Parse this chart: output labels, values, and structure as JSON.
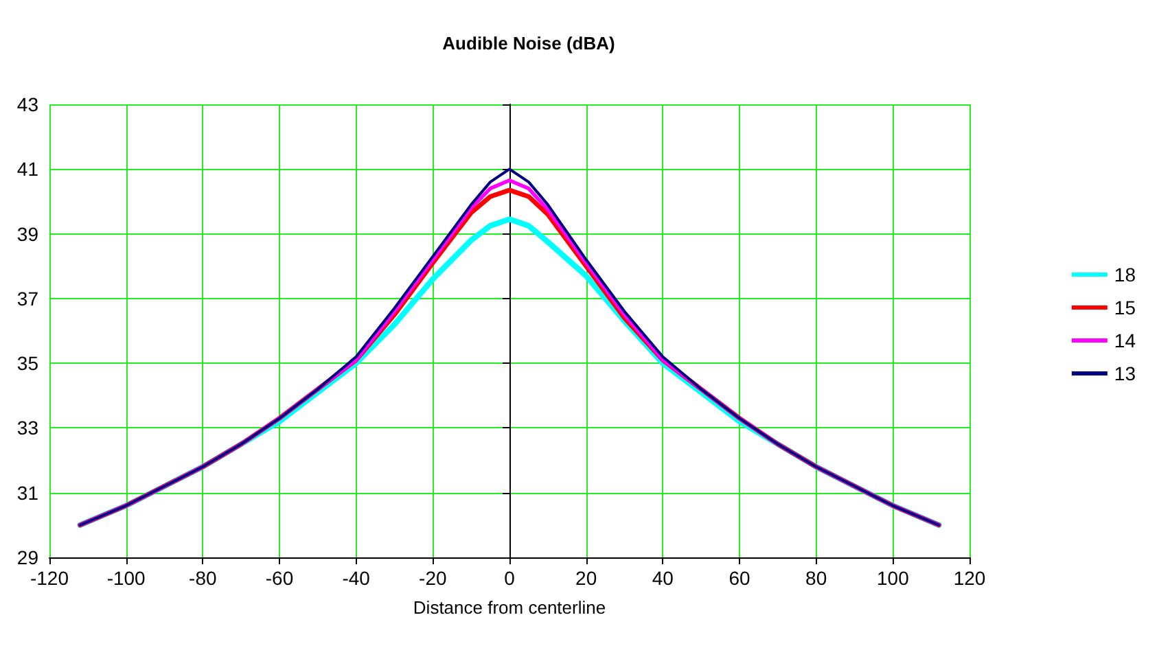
{
  "chart_data": {
    "type": "line",
    "title": "Audible Noise (dBA)",
    "xlabel": "Distance from centerline",
    "x": [
      -112,
      -100,
      -90,
      -80,
      -70,
      -60,
      -50,
      -40,
      -30,
      -20,
      -10,
      -5,
      0,
      5,
      10,
      20,
      30,
      40,
      50,
      60,
      70,
      80,
      90,
      100,
      112
    ],
    "series": [
      {
        "name": "18",
        "color": "#00ffff",
        "values": [
          30.0,
          30.6,
          31.2,
          31.8,
          32.5,
          33.2,
          34.1,
          35.0,
          36.2,
          37.6,
          38.8,
          39.25,
          39.45,
          39.25,
          38.75,
          37.7,
          36.3,
          35.0,
          34.1,
          33.2,
          32.5,
          31.8,
          31.2,
          30.6,
          30.0
        ]
      },
      {
        "name": "15",
        "color": "#ff0000",
        "values": [
          30.0,
          30.6,
          31.2,
          31.8,
          32.5,
          33.3,
          34.2,
          35.1,
          36.5,
          38.1,
          39.65,
          40.15,
          40.35,
          40.15,
          39.6,
          38.0,
          36.4,
          35.1,
          34.2,
          33.3,
          32.5,
          31.8,
          31.2,
          30.6,
          30.0
        ]
      },
      {
        "name": "14",
        "color": "#ff00ff",
        "values": [
          30.0,
          30.6,
          31.2,
          31.8,
          32.5,
          33.3,
          34.2,
          35.1,
          36.6,
          38.2,
          39.8,
          40.4,
          40.65,
          40.4,
          39.75,
          38.1,
          36.5,
          35.1,
          34.2,
          33.3,
          32.5,
          31.8,
          31.2,
          30.6,
          30.0
        ]
      },
      {
        "name": "13",
        "color": "#000080",
        "values": [
          30.0,
          30.6,
          31.2,
          31.8,
          32.5,
          33.3,
          34.2,
          35.2,
          36.7,
          38.3,
          39.9,
          40.6,
          41.0,
          40.6,
          39.9,
          38.2,
          36.6,
          35.2,
          34.2,
          33.3,
          32.5,
          31.8,
          31.2,
          30.6,
          30.0
        ]
      }
    ],
    "xlim": [
      -120,
      120
    ],
    "xticks": [
      -120,
      -100,
      -80,
      -60,
      -40,
      -20,
      0,
      20,
      40,
      60,
      80,
      100,
      120
    ],
    "ylim": [
      29,
      43
    ],
    "yticks": [
      29,
      31,
      33,
      35,
      37,
      39,
      41,
      43
    ],
    "grid": true,
    "legend": "right",
    "marker": "none",
    "line_style": "solid"
  }
}
